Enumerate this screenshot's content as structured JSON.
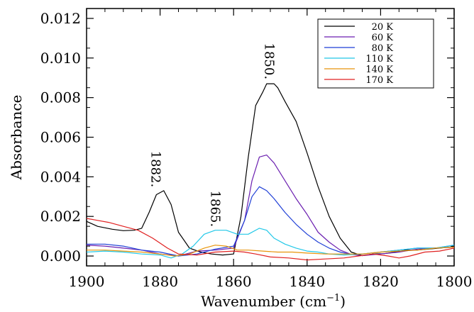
{
  "chart_data": {
    "type": "line",
    "xlabel": "Wavenumber (cm",
    "xlabel_sup": "−1",
    "xlabel_tail": ")",
    "ylabel": "Absorbance",
    "xlim": [
      1900,
      1800
    ],
    "ylim": [
      -0.0005,
      0.0125
    ],
    "x_ticks": [
      1900,
      1880,
      1860,
      1840,
      1820,
      1800
    ],
    "y_ticks": [
      0.0,
      0.002,
      0.004,
      0.006,
      0.008,
      0.01,
      0.012
    ],
    "y_tick_labels": [
      "0.000",
      "0.002",
      "0.004",
      "0.006",
      "0.008",
      "0.010",
      "0.012"
    ],
    "grid": false,
    "legend_position": "top-right",
    "annotations": [
      {
        "text": "1882.",
        "x": 1881.2,
        "y": 0.00345
      },
      {
        "text": "1865.",
        "x": 1865.0,
        "y": 0.00145
      },
      {
        "text": "1850.",
        "x": 1850.3,
        "y": 0.0089
      }
    ],
    "series": [
      {
        "name": "20 K",
        "color": "#000000",
        "x": [
          1900,
          1897,
          1893,
          1890,
          1887,
          1885,
          1883,
          1881,
          1879,
          1877,
          1875,
          1872,
          1869,
          1866,
          1863,
          1860,
          1858,
          1856,
          1854,
          1852,
          1851,
          1850,
          1849,
          1848,
          1846,
          1843,
          1840,
          1837,
          1834,
          1831,
          1828,
          1825,
          1822,
          1819,
          1816,
          1813,
          1810,
          1807,
          1804,
          1801,
          1800
        ],
        "y": [
          0.00175,
          0.0015,
          0.00135,
          0.00128,
          0.0013,
          0.0014,
          0.0022,
          0.0031,
          0.0033,
          0.0026,
          0.0012,
          0.0004,
          0.0002,
          0.0001,
          5e-05,
          0.0001,
          0.002,
          0.005,
          0.0076,
          0.0083,
          0.0087,
          0.0087,
          0.0087,
          0.0085,
          0.0078,
          0.0068,
          0.0052,
          0.0035,
          0.002,
          0.0009,
          0.0002,
          2e-05,
          0.0001,
          0.00012,
          0.0002,
          0.0003,
          0.0003,
          0.00035,
          0.0004,
          0.00045,
          0.00048
        ]
      },
      {
        "name": "60 K",
        "color": "#6b1fb0",
        "x": [
          1900,
          1895,
          1890,
          1885,
          1880,
          1875,
          1870,
          1865,
          1860,
          1857,
          1855,
          1853,
          1851,
          1849,
          1846,
          1843,
          1840,
          1837,
          1834,
          1831,
          1828,
          1825,
          1820,
          1815,
          1810,
          1805,
          1800
        ],
        "y": [
          0.00055,
          0.0005,
          0.0004,
          0.0003,
          0.0001,
          0.0,
          0.00025,
          0.0003,
          0.0004,
          0.0018,
          0.0038,
          0.005,
          0.0051,
          0.0047,
          0.0038,
          0.0029,
          0.0021,
          0.0012,
          0.0007,
          0.0003,
          8e-05,
          2e-05,
          0.0001,
          0.0002,
          0.00035,
          0.0004,
          0.00045
        ]
      },
      {
        "name": "80 K",
        "color": "#1f3fd6",
        "x": [
          1900,
          1895,
          1890,
          1885,
          1880,
          1875,
          1870,
          1865,
          1860,
          1857,
          1855,
          1853,
          1851,
          1849,
          1846,
          1843,
          1840,
          1837,
          1834,
          1831,
          1828,
          1825,
          1820,
          1815,
          1810,
          1805,
          1800
        ],
        "y": [
          0.0006,
          0.0006,
          0.0005,
          0.0003,
          0.0002,
          0.0,
          0.0001,
          0.00035,
          0.0005,
          0.0018,
          0.003,
          0.0035,
          0.0033,
          0.0029,
          0.0022,
          0.0016,
          0.0011,
          0.0007,
          0.0004,
          0.0002,
          8e-05,
          0.0001,
          0.0002,
          0.0003,
          0.0004,
          0.0004,
          0.00055
        ]
      },
      {
        "name": "110 K",
        "color": "#22c8e8",
        "x": [
          1900,
          1895,
          1890,
          1885,
          1880,
          1877,
          1874,
          1871,
          1868,
          1865,
          1862,
          1859,
          1856,
          1853,
          1851,
          1849,
          1846,
          1843,
          1840,
          1837,
          1834,
          1830,
          1825,
          1820,
          1815,
          1810,
          1805,
          1800
        ],
        "y": [
          0.0002,
          0.00025,
          0.0002,
          0.0001,
          5e-05,
          -0.0001,
          0.0001,
          0.0005,
          0.0011,
          0.0013,
          0.0013,
          0.0011,
          0.0011,
          0.0014,
          0.0013,
          0.0009,
          0.0006,
          0.0004,
          0.00025,
          0.0002,
          0.0001,
          5e-05,
          0.0001,
          0.0002,
          0.0003,
          0.0004,
          0.0004,
          0.00055
        ]
      },
      {
        "name": "140 K",
        "color": "#e8940a",
        "x": [
          1900,
          1895,
          1890,
          1885,
          1880,
          1876,
          1872,
          1868,
          1865,
          1862,
          1859,
          1856,
          1852,
          1848,
          1844,
          1840,
          1835,
          1830,
          1825,
          1820,
          1815,
          1810,
          1805,
          1800
        ],
        "y": [
          0.0003,
          0.0003,
          0.00025,
          0.0002,
          0.0001,
          0.0,
          0.0001,
          0.0004,
          0.00055,
          0.0005,
          0.0003,
          0.0003,
          0.00025,
          0.0002,
          0.0002,
          0.00015,
          0.0001,
          0.0001,
          0.0001,
          0.0002,
          0.00025,
          0.0003,
          0.0004,
          0.00045
        ]
      },
      {
        "name": "170 K",
        "color": "#e02020",
        "x": [
          1900,
          1897,
          1894,
          1890,
          1886,
          1882,
          1878,
          1875,
          1870,
          1865,
          1860,
          1857,
          1854,
          1850,
          1845,
          1840,
          1835,
          1830,
          1826,
          1822,
          1818,
          1815,
          1812,
          1808,
          1804,
          1800
        ],
        "y": [
          0.0019,
          0.0018,
          0.0017,
          0.0015,
          0.0013,
          0.0009,
          0.0004,
          0.0001,
          5e-05,
          0.0002,
          0.00025,
          0.0002,
          0.0001,
          -5e-05,
          -0.0001,
          -0.0002,
          -0.00015,
          -0.0001,
          0.0,
          0.0001,
          0.0,
          -0.0001,
          0.0,
          0.0002,
          0.00025,
          0.0004
        ]
      }
    ]
  }
}
